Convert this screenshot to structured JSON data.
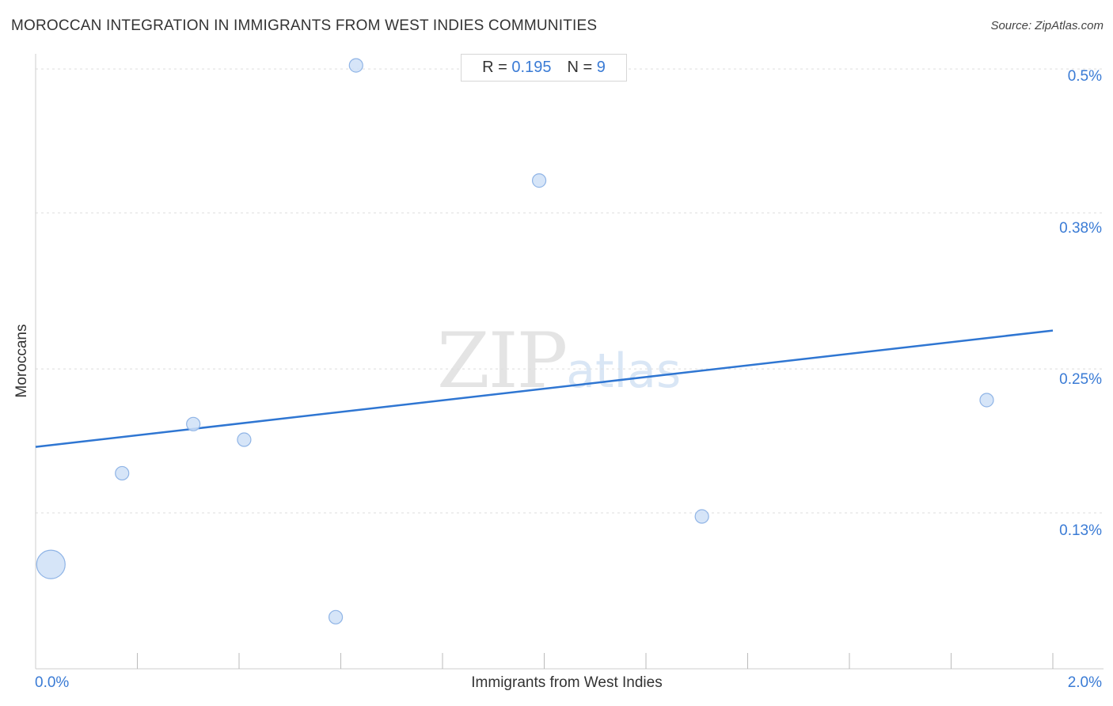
{
  "header": {
    "title": "MOROCCAN INTEGRATION IN IMMIGRANTS FROM WEST INDIES COMMUNITIES",
    "source": "Source: ZipAtlas.com"
  },
  "stats": {
    "r_label": "R =",
    "r_value": "0.195",
    "n_label": "N =",
    "n_value": "9"
  },
  "watermark": {
    "zip": "ZIP",
    "atlas": "atlas"
  },
  "colors": {
    "point_fill": "#cfe0f7",
    "point_stroke": "#8fb4e6",
    "trend_line": "#2f76d2",
    "tick_text": "#3a7bd5",
    "grid": "#dddddd"
  },
  "chart_data": {
    "type": "scatter",
    "title": "MOROCCAN INTEGRATION IN IMMIGRANTS FROM WEST INDIES COMMUNITIES",
    "xlabel": "Immigrants from West Indies",
    "ylabel": "Moroccans",
    "xlim": [
      0.0,
      2.0
    ],
    "ylim": [
      0.0,
      0.51
    ],
    "x_tick_labels": [
      {
        "value": 0.0,
        "label": "0.0%"
      },
      {
        "value": 2.0,
        "label": "2.0%"
      }
    ],
    "y_tick_labels": [
      {
        "value": 0.5,
        "label": "0.5%"
      },
      {
        "value": 0.38,
        "label": "0.38%"
      },
      {
        "value": 0.25,
        "label": "0.25%"
      },
      {
        "value": 0.13,
        "label": "0.13%"
      }
    ],
    "grid": true,
    "points": [
      {
        "x": 0.03,
        "y": 0.087,
        "size": "large"
      },
      {
        "x": 0.17,
        "y": 0.163,
        "size": "small"
      },
      {
        "x": 0.31,
        "y": 0.204,
        "size": "small"
      },
      {
        "x": 0.41,
        "y": 0.191,
        "size": "small"
      },
      {
        "x": 0.59,
        "y": 0.043,
        "size": "small"
      },
      {
        "x": 0.63,
        "y": 0.503,
        "size": "small"
      },
      {
        "x": 0.99,
        "y": 0.407,
        "size": "small"
      },
      {
        "x": 1.31,
        "y": 0.127,
        "size": "small"
      },
      {
        "x": 1.87,
        "y": 0.224,
        "size": "small"
      }
    ],
    "trend_line": {
      "x": [
        0.0,
        2.0
      ],
      "y": [
        0.185,
        0.282
      ]
    },
    "r": 0.195,
    "n": 9
  }
}
